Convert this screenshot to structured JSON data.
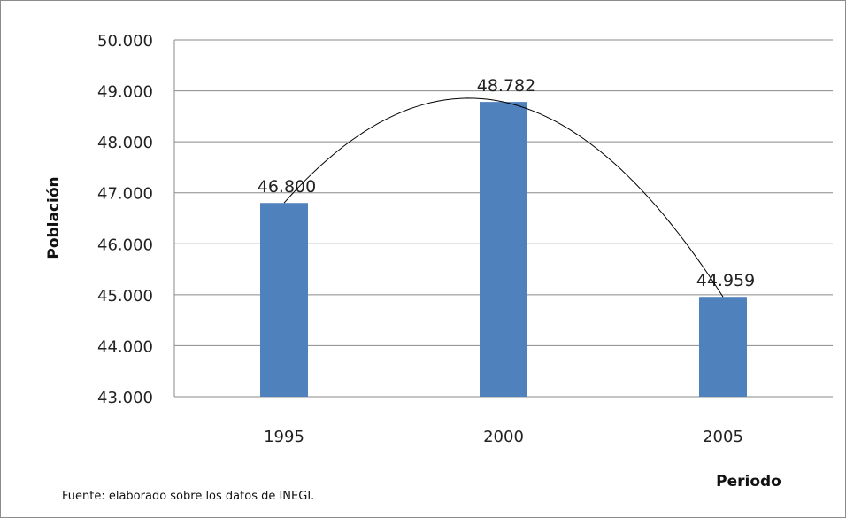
{
  "chart_data": {
    "type": "bar",
    "categories": [
      "1995",
      "2000",
      "2005"
    ],
    "series": [
      {
        "values": [
          46800,
          48782,
          44959
        ],
        "color": "#4f81bd"
      }
    ],
    "data_labels": [
      "46.800",
      "48.782",
      "44.959"
    ],
    "ylabel": "Población",
    "xlabel": "Periodo",
    "ylim": [
      43000,
      50000
    ],
    "yticks": [
      43000,
      44000,
      45000,
      46000,
      47000,
      48000,
      49000,
      50000
    ],
    "ytick_labels": [
      "43.000",
      "44.000",
      "45.000",
      "46.000",
      "47.000",
      "48.000",
      "49.000",
      "50.000"
    ],
    "grid": true,
    "trendline": "polynomial",
    "legend": "none"
  },
  "footnote": "Fuente: elaborado sobre los datos de INEGI."
}
